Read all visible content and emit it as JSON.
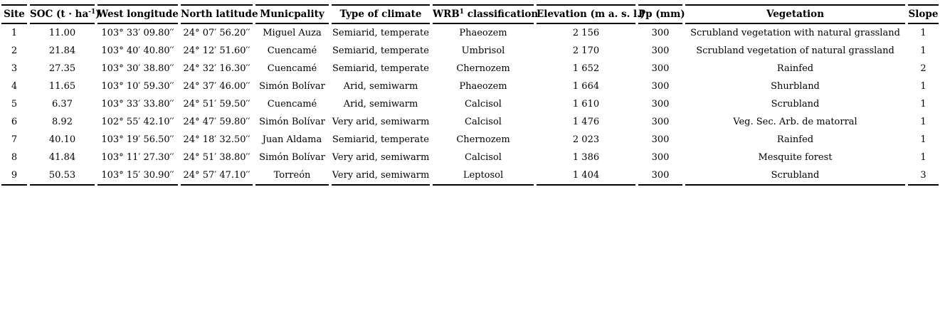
{
  "colors": {
    "text": "#000000",
    "background": "#ffffff",
    "rule": "#000000"
  },
  "table": {
    "columns": [
      {
        "label": "Site"
      },
      {
        "label_pre": "SOC (t · ha",
        "label_sup": "-1",
        "label_post": ")"
      },
      {
        "label": "West longitude"
      },
      {
        "label": "North latitude"
      },
      {
        "label": "Municpality"
      },
      {
        "label": "Type of climate"
      },
      {
        "label_pre": "WRB",
        "label_sup": "1",
        "label_post": " classification"
      },
      {
        "label": "Elevation (m a. s. l.)"
      },
      {
        "label": "Pp (mm)"
      },
      {
        "label": "Vegetation"
      },
      {
        "label": "Slope"
      }
    ],
    "rows": [
      [
        "1",
        "11.00",
        "103° 33′ 09.80′′",
        "24° 07′ 56.20′′",
        "Miguel Auza",
        "Semiarid, temperate",
        "Phaeozem",
        "2 156",
        "300",
        "Scrubland vegetation with natural grassland",
        "1"
      ],
      [
        "2",
        "21.84",
        "103° 40′ 40.80′′",
        "24° 12′ 51.60′′",
        "Cuencamé",
        "Semiarid, temperate",
        "Umbrisol",
        "2 170",
        "300",
        "Scrubland vegetation of natural grassland",
        "1"
      ],
      [
        "3",
        "27.35",
        "103° 30′ 38.80′′",
        "24° 32′ 16.30′′",
        "Cuencamé",
        "Semiarid, temperate",
        "Chernozem",
        "1 652",
        "300",
        "Rainfed",
        "2"
      ],
      [
        "4",
        "11.65",
        "103° 10′ 59.30′′",
        "24° 37′ 46.00′′",
        "Simón Bolívar",
        "Arid, semiwarm",
        "Phaeozem",
        "1 664",
        "300",
        "Shurbland",
        "1"
      ],
      [
        "5",
        "6.37",
        "103° 33′ 33.80′′",
        "24° 51′ 59.50′′",
        "Cuencamé",
        "Arid, semiwarm",
        "Calcisol",
        "1 610",
        "300",
        "Scrubland",
        "1"
      ],
      [
        "6",
        "8.92",
        "102° 55′ 42.10′′",
        "24° 47′ 59.80′′",
        "Simón Bolívar",
        "Very arid, semiwarm",
        "Calcisol",
        "1 476",
        "300",
        "Veg. Sec. Arb. de matorral",
        "1"
      ],
      [
        "7",
        "40.10",
        "103° 19′ 56.50′′",
        "24° 18′ 32.50′′",
        "Juan Aldama",
        "Semiarid, temperate",
        "Chernozem",
        "2 023",
        "300",
        "Rainfed",
        "1"
      ],
      [
        "8",
        "41.84",
        "103° 11′ 27.30′′",
        "24° 51′ 38.80′′",
        "Simón Bolívar",
        "Very arid, semiwarm",
        "Calcisol",
        "1 386",
        "300",
        "Mesquite forest",
        "1"
      ],
      [
        "9",
        "50.53",
        "103° 15′ 30.90′′",
        "24° 57′ 47.10′′",
        "Torreón",
        "Very arid, semiwarm",
        "Leptosol",
        "1 404",
        "300",
        "Scrubland",
        "3"
      ]
    ]
  }
}
